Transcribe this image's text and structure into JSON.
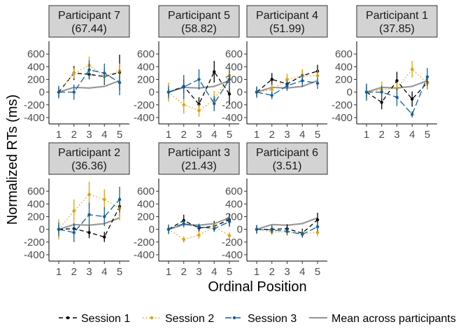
{
  "chart_data": {
    "type": "line",
    "layout": "facet grid, 2 rows x 4 columns",
    "xlabel": "Ordinal Position",
    "ylabel": "Normalized RTs (ms)",
    "x": [
      1,
      2,
      3,
      4,
      5
    ],
    "x_ticks": [
      "1",
      "2",
      "3",
      "4",
      "5"
    ],
    "ylim": [
      -500,
      800
    ],
    "y_ticks": [
      "-400",
      "-200",
      "0",
      "200",
      "400",
      "600"
    ],
    "legend_position": "bottom",
    "legend": [
      {
        "name": "Session 1",
        "color": "#000000",
        "dash": "dashed"
      },
      {
        "name": "Session 2",
        "color": "#E69F00",
        "dash": "dotted"
      },
      {
        "name": "Session 3",
        "color": "#0F5FA0",
        "dash": "longdash"
      },
      {
        "name": "Mean across participants",
        "color": "#999999",
        "dash": "solid"
      }
    ],
    "mean_across_participants": [
      0,
      75,
      65,
      90,
      180
    ],
    "panels": [
      {
        "label": "Participant 7",
        "value": "(67.44)",
        "series": [
          {
            "name": "Session 1",
            "values": [
              0,
              300,
              280,
              245,
              310
            ],
            "err": [
              70,
              110,
              80,
              130,
              280
            ]
          },
          {
            "name": "Session 2",
            "values": [
              0,
              295,
              420,
              250,
              330
            ],
            "err": [
              60,
              80,
              140,
              110,
              120
            ]
          },
          {
            "name": "Session 3",
            "values": [
              0,
              0,
              350,
              300,
              150
            ],
            "err": [
              100,
              120,
              150,
              150,
              200
            ]
          }
        ]
      },
      {
        "label": "Participant 5",
        "value": "(58.82)",
        "series": [
          {
            "name": "Session 1",
            "values": [
              0,
              90,
              -190,
              320,
              -30
            ],
            "err": [
              60,
              110,
              110,
              170,
              160
            ]
          },
          {
            "name": "Session 2",
            "values": [
              0,
              -200,
              -290,
              -120,
              260
            ],
            "err": [
              150,
              140,
              100,
              140,
              200
            ]
          },
          {
            "name": "Session 3",
            "values": [
              0,
              80,
              200,
              -180,
              200
            ],
            "err": [
              100,
              190,
              160,
              120,
              140
            ]
          }
        ]
      },
      {
        "label": "Participant 4",
        "value": "(51.99)",
        "series": [
          {
            "name": "Session 1",
            "values": [
              0,
              200,
              130,
              260,
              330
            ],
            "err": [
              60,
              100,
              90,
              80,
              100
            ]
          },
          {
            "name": "Session 2",
            "values": [
              0,
              40,
              200,
              250,
              260
            ],
            "err": [
              80,
              80,
              90,
              110,
              90
            ]
          },
          {
            "name": "Session 3",
            "values": [
              0,
              -50,
              100,
              180,
              140
            ],
            "err": [
              90,
              60,
              80,
              100,
              90
            ]
          }
        ]
      },
      {
        "label": "Participant 1",
        "value": "(37.85)",
        "series": [
          {
            "name": "Session 1",
            "values": [
              0,
              -160,
              180,
              -110,
              150
            ],
            "err": [
              90,
              110,
              140,
              120,
              100
            ]
          },
          {
            "name": "Session 2",
            "values": [
              0,
              40,
              60,
              360,
              140
            ],
            "err": [
              140,
              130,
              90,
              130,
              100
            ]
          },
          {
            "name": "Session 3",
            "values": [
              0,
              0,
              -80,
              -350,
              240
            ],
            "err": [
              130,
              100,
              140,
              50,
              140
            ]
          }
        ]
      },
      {
        "label": "Participant 2",
        "value": "(36.36)",
        "series": [
          {
            "name": "Session 1",
            "values": [
              0,
              10,
              -50,
              -120,
              360
            ],
            "err": [
              70,
              90,
              90,
              80,
              150
            ]
          },
          {
            "name": "Session 2",
            "values": [
              0,
              290,
              550,
              470,
              330
            ],
            "err": [
              160,
              180,
              200,
              160,
              190
            ]
          },
          {
            "name": "Session 3",
            "values": [
              0,
              -50,
              230,
              200,
              470
            ],
            "err": [
              110,
              150,
              190,
              150,
              200
            ]
          }
        ]
      },
      {
        "label": "Participant 3",
        "value": "(21.43)",
        "series": [
          {
            "name": "Session 1",
            "values": [
              0,
              140,
              20,
              50,
              150
            ],
            "err": [
              60,
              90,
              60,
              80,
              100
            ]
          },
          {
            "name": "Session 2",
            "values": [
              0,
              -160,
              -90,
              40,
              -100
            ],
            "err": [
              80,
              50,
              60,
              60,
              50
            ]
          },
          {
            "name": "Session 3",
            "values": [
              0,
              90,
              40,
              10,
              120
            ],
            "err": [
              70,
              60,
              50,
              50,
              80
            ]
          }
        ]
      },
      {
        "label": "Participant 6",
        "value": "(3.51)",
        "series": [
          {
            "name": "Session 1",
            "values": [
              0,
              0,
              10,
              -60,
              150
            ],
            "err": [
              60,
              60,
              70,
              70,
              110
            ]
          },
          {
            "name": "Session 2",
            "values": [
              0,
              -40,
              -40,
              -70,
              -50
            ],
            "err": [
              60,
              50,
              60,
              50,
              60
            ]
          },
          {
            "name": "Session 3",
            "values": [
              0,
              -10,
              -30,
              -80,
              40
            ],
            "err": [
              70,
              60,
              60,
              50,
              70
            ]
          }
        ]
      }
    ]
  }
}
